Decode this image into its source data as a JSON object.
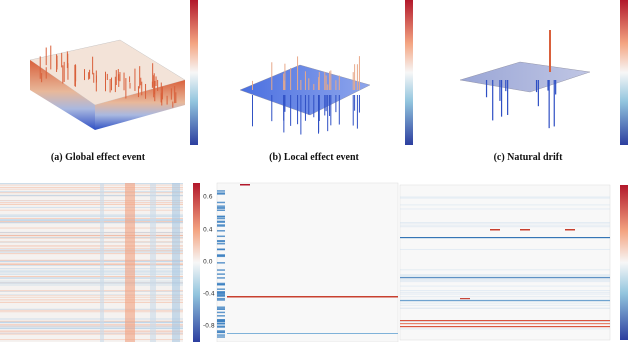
{
  "captions": [
    "(a) Global effect event",
    "(b) Local effect event",
    "(c) Natural drift"
  ],
  "heatmap_colorbar_ticks": [
    "0.6",
    "0.4",
    "0.0",
    "-0.4",
    "-0.8"
  ]
}
